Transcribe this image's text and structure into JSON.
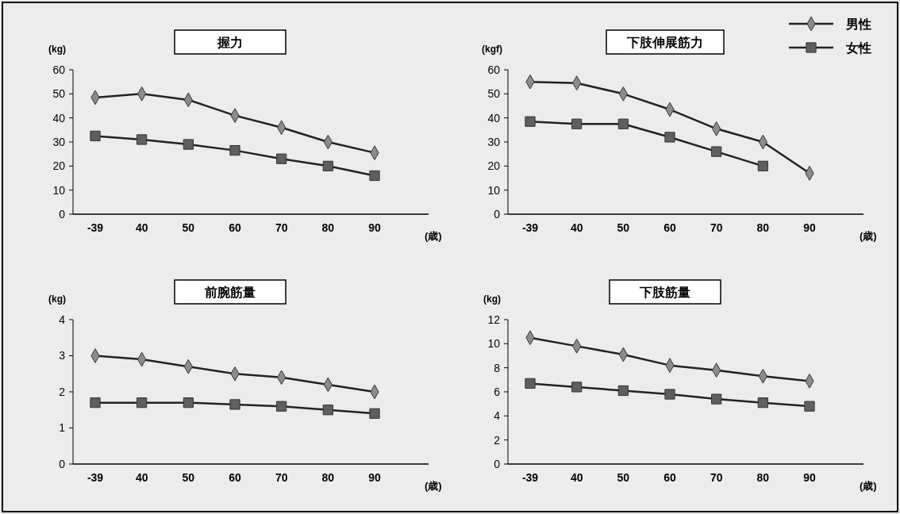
{
  "chart_data": [
    {
      "type": "line",
      "title": "握力",
      "ylabel": "(kg)",
      "xlabel": "(歳)",
      "categories": [
        "-39",
        "40",
        "50",
        "60",
        "70",
        "80",
        "90"
      ],
      "ylim": [
        0,
        60
      ],
      "yticks": [
        0,
        10,
        20,
        30,
        40,
        50,
        60
      ],
      "grid": false,
      "legend": false,
      "series": [
        {
          "color": "#8c8c8c",
          "marker": "diamond",
          "values": [
            48.5,
            50,
            47.5,
            41,
            36,
            30,
            25.5
          ]
        },
        {
          "color": "#5f5f5f",
          "marker": "square",
          "values": [
            32.5,
            31,
            29,
            26.5,
            23,
            20,
            16
          ]
        }
      ]
    },
    {
      "type": "line",
      "title": "下肢伸展筋力",
      "ylabel": "(kgf)",
      "xlabel": "(歳)",
      "categories": [
        "-39",
        "40",
        "50",
        "60",
        "70",
        "80",
        "90"
      ],
      "ylim": [
        0,
        60
      ],
      "yticks": [
        0,
        10,
        20,
        30,
        40,
        50,
        60
      ],
      "grid": false,
      "legend": "top right",
      "series": [
        {
          "name": "男性",
          "color": "#8c8c8c",
          "marker": "diamond",
          "values": [
            55,
            54.5,
            50,
            43.5,
            35.5,
            30,
            17
          ]
        },
        {
          "name": "女性",
          "color": "#5f5f5f",
          "marker": "square",
          "values": [
            38.5,
            37.5,
            37.5,
            32,
            26,
            20,
            null
          ]
        }
      ]
    },
    {
      "type": "line",
      "title": "前腕筋量",
      "ylabel": "(kg)",
      "xlabel": "(歳)",
      "categories": [
        "-39",
        "40",
        "50",
        "60",
        "70",
        "80",
        "90"
      ],
      "ylim": [
        0,
        4
      ],
      "yticks": [
        0,
        1,
        2,
        3,
        4
      ],
      "grid": false,
      "legend": false,
      "series": [
        {
          "color": "#8c8c8c",
          "marker": "diamond",
          "values": [
            3.0,
            2.9,
            2.7,
            2.5,
            2.4,
            2.2,
            2.0
          ]
        },
        {
          "color": "#5f5f5f",
          "marker": "square",
          "values": [
            1.7,
            1.7,
            1.7,
            1.65,
            1.6,
            1.5,
            1.4
          ]
        }
      ]
    },
    {
      "type": "line",
      "title": "下肢筋量",
      "ylabel": "(kg)",
      "xlabel": "(歳)",
      "categories": [
        "-39",
        "40",
        "50",
        "60",
        "70",
        "80",
        "90"
      ],
      "ylim": [
        0,
        12
      ],
      "yticks": [
        0,
        2,
        4,
        6,
        8,
        10,
        12
      ],
      "grid": false,
      "legend": false,
      "series": [
        {
          "color": "#8c8c8c",
          "marker": "diamond",
          "values": [
            10.5,
            9.8,
            9.1,
            8.2,
            7.8,
            7.3,
            6.9
          ]
        },
        {
          "color": "#5f5f5f",
          "marker": "square",
          "values": [
            6.7,
            6.4,
            6.1,
            5.8,
            5.4,
            5.1,
            4.8
          ]
        }
      ]
    }
  ]
}
